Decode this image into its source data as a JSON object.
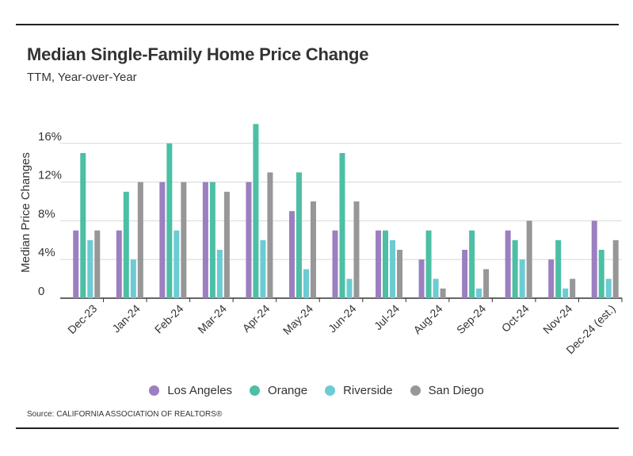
{
  "header": {
    "title": "Median Single-Family Home Price Change",
    "subtitle": "TTM, Year-over-Year"
  },
  "source": "Source:  CALIFORNIA ASSOCIATION OF REALTORS®",
  "colors": {
    "Los Angeles": "#9b7fc0",
    "Orange": "#4cbfa4",
    "Riverside": "#6ccbd3",
    "San Diego": "#979797",
    "grid": "#d8d8d8",
    "axis": "#333333"
  },
  "chart_data": {
    "type": "bar",
    "title": "Median Single-Family Home Price Change",
    "subtitle": "TTM, Year-over-Year",
    "ylabel": "Median Price Changes",
    "xlabel": "",
    "ylim": [
      0,
      17
    ],
    "yticks": [
      0,
      4,
      8,
      12,
      16
    ],
    "ytick_labels": [
      "0",
      "4%",
      "8%",
      "12%",
      "16%"
    ],
    "grid": true,
    "legend_position": "bottom",
    "categories": [
      "Dec-23",
      "Jan-24",
      "Feb-24",
      "Mar-24",
      "Apr-24",
      "May-24",
      "Jun-24",
      "Jul-24",
      "Aug-24",
      "Sep-24",
      "Oct-24",
      "Nov-24",
      "Dec-24 (est.)"
    ],
    "series": [
      {
        "name": "Los Angeles",
        "values": [
          7,
          7,
          12,
          12,
          12,
          9,
          7,
          7,
          4,
          5,
          7,
          4,
          8
        ]
      },
      {
        "name": "Orange",
        "values": [
          15,
          11,
          16,
          12,
          18,
          13,
          15,
          7,
          7,
          7,
          6,
          6,
          5
        ]
      },
      {
        "name": "Riverside",
        "values": [
          6,
          4,
          7,
          5,
          6,
          3,
          2,
          6,
          2,
          1,
          4,
          1,
          2
        ]
      },
      {
        "name": "San Diego",
        "values": [
          7,
          12,
          12,
          11,
          13,
          10,
          10,
          5,
          1,
          3,
          8,
          2,
          6
        ]
      }
    ]
  }
}
